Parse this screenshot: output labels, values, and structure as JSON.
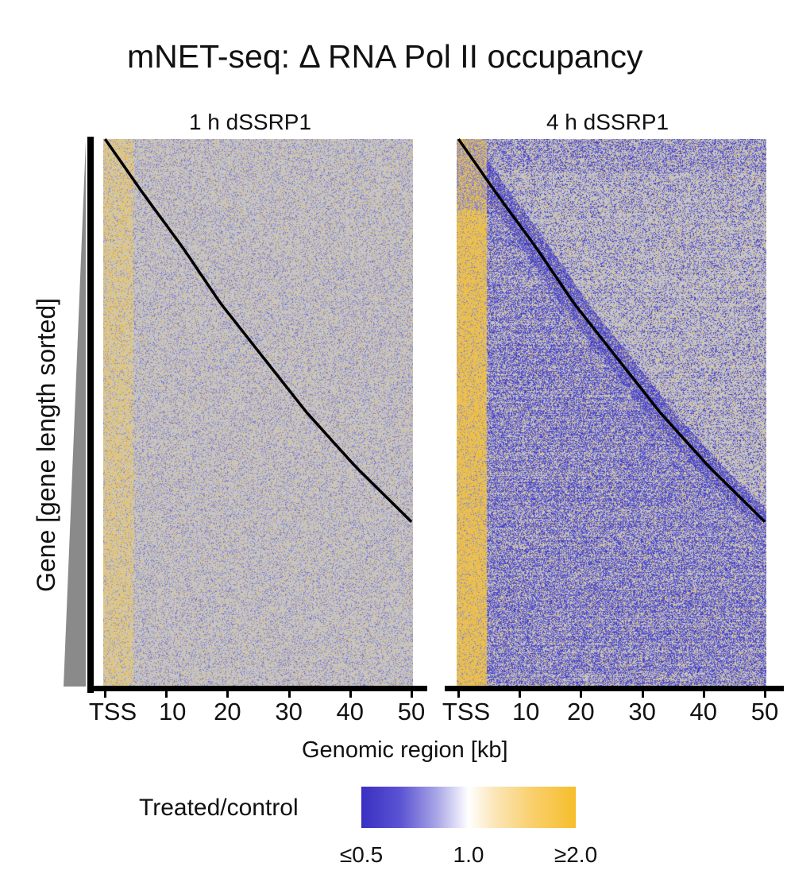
{
  "chart_data": {
    "type": "heatmap",
    "title": "mNET-seq: Δ RNA Pol II occupancy",
    "ylabel": "Gene [gene length sorted]",
    "xlabel": "Genomic region [kb]",
    "x_ticks": [
      "TSS",
      "10",
      "20",
      "30",
      "40",
      "50"
    ],
    "xlim": [
      0,
      50
    ],
    "colorbar": {
      "label": "Treated/control",
      "ticks": [
        "≤0.5",
        "1.0",
        "≥2.0"
      ],
      "colors": [
        "#3a2fc2",
        "#ffffff",
        "#f6be2b"
      ]
    },
    "panels": [
      {
        "title": "1 h dSSRP1",
        "gene_end_curve": {
          "gene_rank_fraction": [
            0.0,
            0.1,
            0.2,
            0.3,
            0.4,
            0.5,
            0.6,
            0.7
          ],
          "gene_length_kb": [
            0.3,
            6.5,
            13,
            19,
            26,
            33,
            41,
            50
          ]
        },
        "pattern": "yellow enrichment near TSS (0–5 kb); mixed values downstream"
      },
      {
        "title": "4 h dSSRP1",
        "gene_end_curve": {
          "gene_rank_fraction": [
            0.0,
            0.1,
            0.2,
            0.3,
            0.4,
            0.5,
            0.6,
            0.7
          ],
          "gene_length_kb": [
            0.3,
            6.5,
            13,
            19,
            26,
            33,
            41,
            50
          ]
        },
        "pattern": "strong yellow enrichment near TSS (0–5 kb); blue depletion in gene bodies"
      }
    ]
  }
}
